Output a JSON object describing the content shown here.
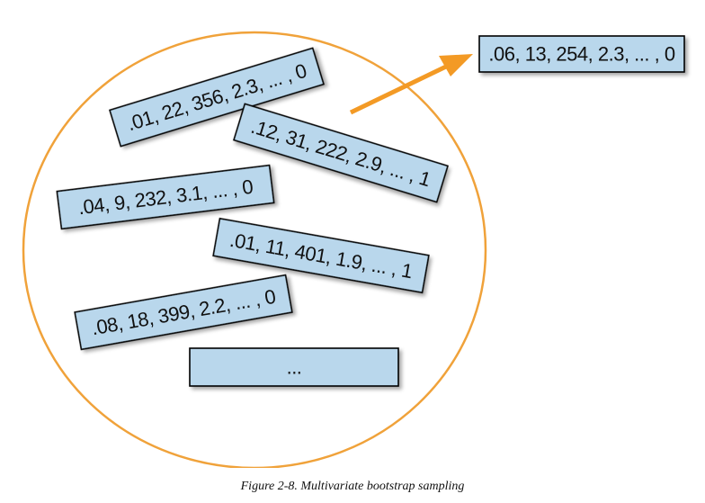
{
  "diagram": {
    "colors": {
      "circle": "#F0A23A",
      "arrow": "#F39A25",
      "box_fill": "#B9D7EC",
      "box_border": "#000000"
    },
    "sampled_row": ".06, 13, 254, 2.3, ... , 0",
    "rows": [
      ".01, 22, 356, 2.3, ... , 0",
      ".12, 31, 222, 2.9, ... , 1",
      ".04, 9, 232, 3.1, ... , 0",
      ".01, 11, 401, 1.9, ... , 1",
      ".08, 18, 399, 2.2, ... , 0",
      "..."
    ]
  },
  "caption": "Figure 2-8. Multivariate bootstrap sampling"
}
